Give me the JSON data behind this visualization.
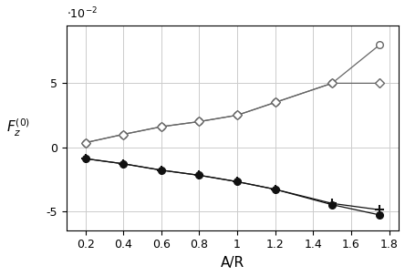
{
  "x": [
    0.2,
    0.4,
    0.6,
    0.8,
    1.0,
    1.2,
    1.5,
    1.75
  ],
  "line1_open_circle": [
    0.0035,
    0.01,
    0.016,
    0.02,
    0.025,
    0.035,
    0.05,
    0.08
  ],
  "line2_open_diamond": [
    0.0035,
    0.01,
    0.016,
    0.02,
    0.025,
    0.035,
    0.05,
    0.05
  ],
  "line3_filled_circle": [
    -0.009,
    -0.013,
    -0.018,
    -0.022,
    -0.027,
    -0.033,
    -0.045,
    -0.053
  ],
  "line4_filled_plus": [
    -0.009,
    -0.013,
    -0.018,
    -0.022,
    -0.027,
    -0.033,
    -0.044,
    -0.049
  ],
  "xlabel": "A/R",
  "ylabel": "$F_z^{(0)}$",
  "scale_label": "$\\cdot10^{-2}$",
  "ylim": [
    -0.065,
    0.095
  ],
  "xlim": [
    0.1,
    1.85
  ],
  "yticks": [
    -0.05,
    0.0,
    0.05
  ],
  "ytick_labels": [
    "-5",
    "0",
    "5"
  ],
  "xticks": [
    0.2,
    0.4,
    0.6,
    0.8,
    1.0,
    1.2,
    1.4,
    1.6,
    1.8
  ],
  "grid_color": "#cccccc",
  "line_color_open": "#666666",
  "line_color_filled": "#111111",
  "bg_color": "#ffffff"
}
